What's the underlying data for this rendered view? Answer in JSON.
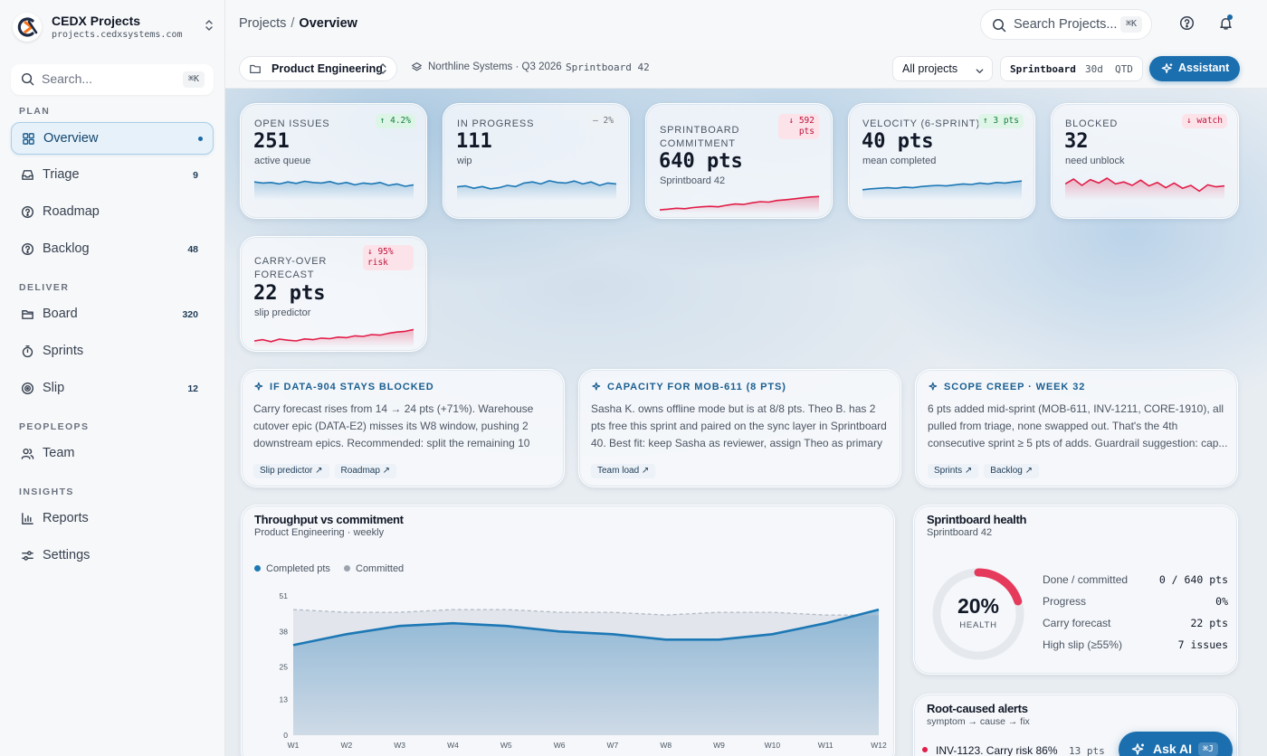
{
  "brand": {
    "name": "CEDX Projects",
    "domain": "projects.cedxsystems.com"
  },
  "sidebar": {
    "search_placeholder": "Search...",
    "search_kbd": "⌘K",
    "sections": {
      "plan": "PLAN",
      "deliver": "DELIVER",
      "peopleops": "PEOPLEOPS",
      "insights": "INSIGHTS"
    },
    "items": [
      {
        "label": "Overview",
        "active": true,
        "icon": "grid-icon"
      },
      {
        "label": "Triage",
        "count": "9",
        "icon": "inbox-icon"
      },
      {
        "label": "Roadmap",
        "icon": "question-circle-icon"
      },
      {
        "label": "Backlog",
        "count": "48",
        "icon": "question-circle-icon"
      },
      {
        "label": "Board",
        "count": "320",
        "icon": "folder-icon"
      },
      {
        "label": "Sprints",
        "icon": "timer-icon"
      },
      {
        "label": "Slip",
        "count": "12",
        "icon": "target-icon"
      },
      {
        "label": "Team",
        "icon": "users-icon"
      },
      {
        "label": "Reports",
        "icon": "bar-chart-icon"
      },
      {
        "label": "Settings",
        "icon": "sliders-icon"
      }
    ]
  },
  "topbar": {
    "breadcrumb_root": "Projects",
    "breadcrumb_sep": "/",
    "breadcrumb_current": "Overview",
    "search_placeholder": "Search Projects...",
    "search_kbd": "⌘K"
  },
  "filters": {
    "workspace": "Product Engineering",
    "org": "Northline Systems · Q3 2026",
    "sprintboard": "Sprintboard 42",
    "project_select": "All projects",
    "range_label": "Sprintboard",
    "range_30d": "30d",
    "range_qtd": "QTD",
    "assistant": "Assistant"
  },
  "kpis": [
    {
      "label": "OPEN ISSUES",
      "value": "251",
      "sub": "active queue",
      "badge": "↑ 4.2%",
      "trend": "up",
      "color": "#1d78b5",
      "spark": [
        0.62,
        0.58,
        0.6,
        0.55,
        0.62,
        0.57,
        0.64,
        0.6,
        0.58,
        0.63,
        0.55,
        0.6,
        0.52,
        0.58,
        0.55,
        0.6,
        0.5,
        0.55,
        0.47,
        0.52
      ]
    },
    {
      "label": "IN PROGRESS",
      "value": "111",
      "sub": "wip",
      "badge": "– 2%",
      "trend": "flat",
      "color": "#1d78b5",
      "spark": [
        0.45,
        0.48,
        0.4,
        0.46,
        0.38,
        0.42,
        0.5,
        0.46,
        0.58,
        0.62,
        0.55,
        0.66,
        0.6,
        0.58,
        0.65,
        0.55,
        0.62,
        0.5,
        0.58,
        0.55
      ]
    },
    {
      "label": "SPRINTBOARD COMMITMENT",
      "value": "640 pts",
      "sub": "Sprintboard 42",
      "badge": "↓ 592 pts",
      "trend": "down",
      "color": "#e11d48",
      "spark": [
        0.15,
        0.18,
        0.22,
        0.2,
        0.25,
        0.28,
        0.3,
        0.28,
        0.35,
        0.4,
        0.38,
        0.45,
        0.5,
        0.48,
        0.55,
        0.58,
        0.62,
        0.66,
        0.7,
        0.72
      ]
    },
    {
      "label": "VELOCITY (6-SPRINT)",
      "value": "40 pts",
      "sub": "mean completed",
      "badge": "↑ 3 pts",
      "trend": "up",
      "color": "#1d78b5",
      "spark": [
        0.35,
        0.38,
        0.4,
        0.42,
        0.4,
        0.44,
        0.42,
        0.46,
        0.48,
        0.5,
        0.48,
        0.52,
        0.55,
        0.53,
        0.58,
        0.55,
        0.6,
        0.58,
        0.62,
        0.65
      ]
    },
    {
      "label": "BLOCKED",
      "value": "32",
      "sub": "need unblock",
      "badge": "↓ watch",
      "trend": "down",
      "color": "#e11d48",
      "spark": [
        0.55,
        0.72,
        0.5,
        0.7,
        0.58,
        0.75,
        0.55,
        0.62,
        0.5,
        0.68,
        0.48,
        0.6,
        0.42,
        0.58,
        0.4,
        0.5,
        0.3,
        0.52,
        0.45,
        0.48
      ]
    },
    {
      "label": "CARRY-OVER FORECAST",
      "value": "22 pts",
      "sub": "slip predictor",
      "badge": "↓ 95% risk",
      "trend": "down",
      "color": "#e11d48",
      "spark": [
        0.25,
        0.3,
        0.22,
        0.32,
        0.28,
        0.25,
        0.33,
        0.3,
        0.36,
        0.34,
        0.4,
        0.38,
        0.45,
        0.43,
        0.5,
        0.48,
        0.55,
        0.6,
        0.63,
        0.7
      ]
    }
  ],
  "insights": [
    {
      "title": "IF DATA-904 STAYS BLOCKED",
      "body": "Carry forecast rises from 14 → 24 pts (+71%). Warehouse cutover epic (DATA-E2) misses its W8 window, pushing 2 downstream epics. Recommended: split the remaining 10 pts...",
      "tags": [
        "Slip predictor ↗",
        "Roadmap ↗"
      ]
    },
    {
      "title": "CAPACITY FOR MOB-611 (8 PTS)",
      "body": "Sasha K. owns offline mode but is at 8/8 pts. Theo B. has 2 pts free this sprint and paired on the sync layer in Sprintboard 40. Best fit: keep Sasha as reviewer, assign Theo as primary with ...",
      "tags": [
        "Team load ↗"
      ]
    },
    {
      "title": "SCOPE CREEP · WEEK 32",
      "body": "6 pts added mid-sprint (MOB-611, INV-1211, CORE-1910), all pulled from triage, none swapped out. That's the 4th consecutive sprint ≥ 5 pts of adds. Guardrail suggestion: cap...",
      "tags": [
        "Sprints ↗",
        "Backlog ↗"
      ]
    }
  ],
  "throughput": {
    "title": "Throughput vs commitment",
    "subtitle": "Product Engineering · weekly",
    "legend_completed": "Completed pts",
    "legend_committed": "Committed",
    "chart_data": {
      "type": "area",
      "x": [
        "W1",
        "W2",
        "W3",
        "W4",
        "W5",
        "W6",
        "W7",
        "W8",
        "W9",
        "W10",
        "W11",
        "W12"
      ],
      "ylim": [
        0,
        51
      ],
      "yticks": [
        "0",
        "13",
        "25",
        "38",
        "51"
      ],
      "series": [
        {
          "name": "Completed pts",
          "color": "#1d78b5",
          "values": [
            33,
            37,
            40,
            41,
            40,
            38,
            37,
            35,
            35,
            37,
            41,
            46
          ]
        },
        {
          "name": "Committed",
          "color": "#9ca3af",
          "values": [
            46,
            45,
            45,
            46,
            46,
            45,
            45,
            44,
            45,
            45,
            44,
            44
          ]
        }
      ]
    }
  },
  "health": {
    "title": "Sprintboard health",
    "subtitle": "Sprintboard 42",
    "percent": "20%",
    "percent_label": "HEALTH",
    "ring_fraction": 0.2,
    "rows": [
      {
        "label": "Done / committed",
        "value": "0 / 640 pts"
      },
      {
        "label": "Progress",
        "value": "0%"
      },
      {
        "label": "Carry forecast",
        "value": "22 pts"
      },
      {
        "label": "High slip (≥55%)",
        "value": "7 issues"
      }
    ]
  },
  "alerts": {
    "title": "Root-caused alerts",
    "subtitle": "symptom → cause → fix",
    "first_item": "INV-1123. Carry risk 86%",
    "first_value": "13 pts"
  },
  "ask_ai": {
    "label": "Ask AI",
    "kbd": "⌘J"
  },
  "colors": {
    "accent": "#1c6fae",
    "danger": "#e11d48",
    "success": "#15803d"
  }
}
